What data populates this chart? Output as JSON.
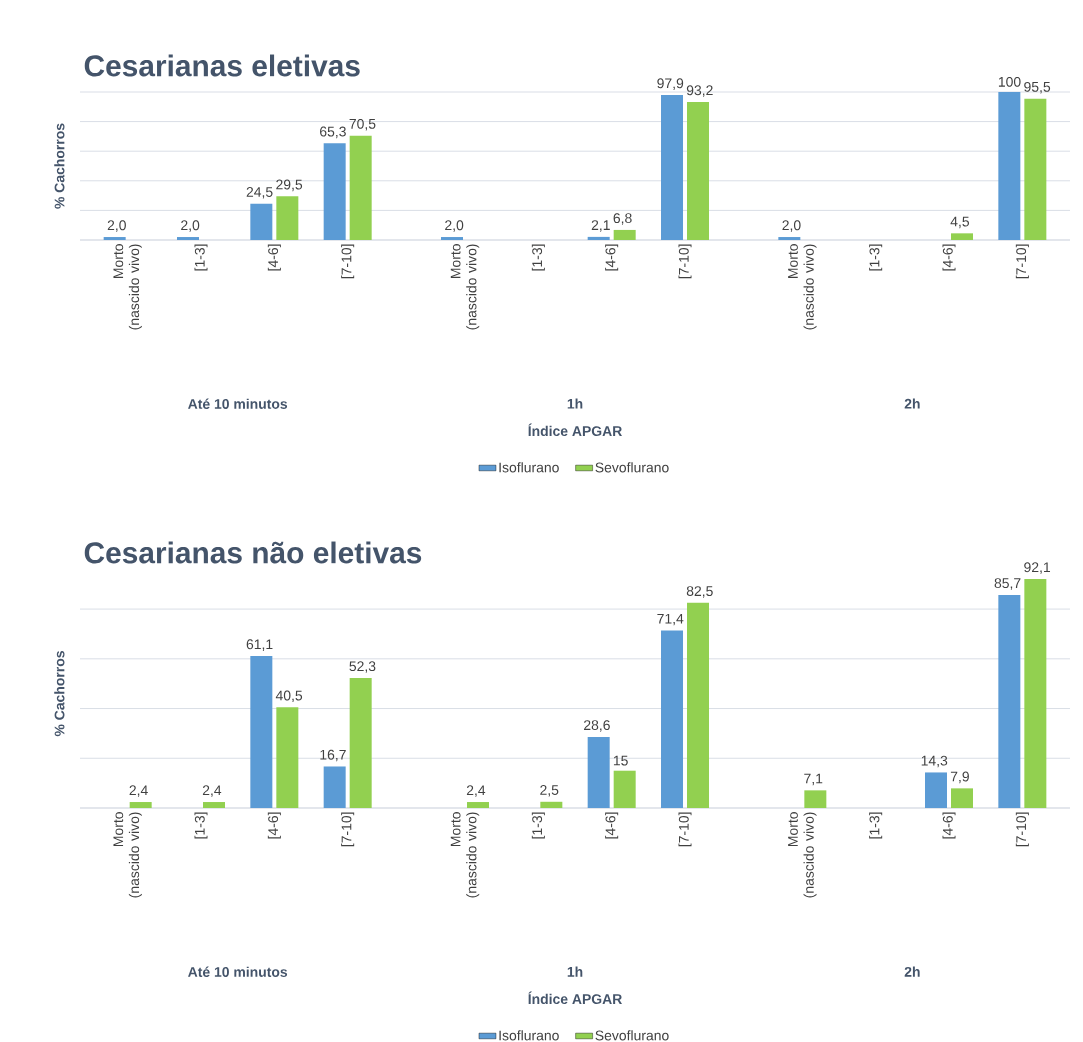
{
  "chart_data": [
    {
      "type": "bar",
      "title": "Cesarianas eletivas",
      "xlabel": "Índice APGAR",
      "ylabel": "% Cachorros",
      "categories": [
        "Morto (nascido vivo)",
        "[1-3]",
        "[4-6]",
        "[7-10]",
        "Morto (nascido vivo)",
        "[1-3]",
        "[4-6]",
        "[7-10]",
        "Morto (nascido vivo)",
        "[1-3]",
        "[4-6]",
        "[7-10]"
      ],
      "annotations": [
        "Até 10 minutos",
        "1h",
        "2h"
      ],
      "series": [
        {
          "name": "Isoflurano",
          "color": "#5b9bd5",
          "values": [
            2.0,
            2.0,
            24.5,
            65.3,
            2.0,
            null,
            2.1,
            97.9,
            2.0,
            null,
            null,
            100
          ],
          "value_labels": [
            "2,0",
            "2,0",
            "24,5",
            "65,3",
            "2,0",
            null,
            "2,1",
            "97,9",
            "2,0",
            null,
            null,
            "100"
          ]
        },
        {
          "name": "Sevoflurano",
          "color": "#92d050",
          "values": [
            null,
            null,
            29.5,
            70.5,
            null,
            null,
            6.8,
            93.2,
            null,
            null,
            4.5,
            95.5
          ],
          "value_labels": [
            null,
            null,
            "29,5",
            "70,5",
            null,
            null,
            "6,8",
            "93,2",
            null,
            null,
            "4,5",
            "95,5"
          ]
        }
      ],
      "tick_labels": "x",
      "grid": "y",
      "legend": "bottom"
    },
    {
      "type": "bar",
      "title": "Cesarianas não eletivas",
      "xlabel": "Índice APGAR",
      "ylabel": "% Cachorros",
      "categories": [
        "Morto (nascido vivo)",
        "[1-3]",
        "[4-6]",
        "[7-10]",
        "Morto (nascido vivo)",
        "[1-3]",
        "[4-6]",
        "[7-10]",
        "Morto (nascido vivo)",
        "[1-3]",
        "[4-6]",
        "[7-10]"
      ],
      "annotations": [
        "Até 10 minutos",
        "1h",
        "2h"
      ],
      "series": [
        {
          "name": "Isoflurano",
          "color": "#5b9bd5",
          "values": [
            null,
            null,
            61.1,
            16.7,
            null,
            null,
            28.6,
            71.4,
            null,
            null,
            14.3,
            85.7
          ],
          "value_labels": [
            null,
            null,
            "61,1",
            "16,7",
            null,
            null,
            "28,6",
            "71,4",
            null,
            null,
            "14,3",
            "85,7"
          ]
        },
        {
          "name": "Sevoflurano",
          "color": "#92d050",
          "values": [
            2.4,
            2.4,
            40.5,
            52.3,
            2.4,
            2.5,
            15,
            82.5,
            7.1,
            null,
            7.9,
            92.1
          ],
          "value_labels": [
            "2,4",
            "2,4",
            "40,5",
            "52,3",
            "2,4",
            "2,5",
            "15",
            "82,5",
            "7,1",
            null,
            "7,9",
            "92,1"
          ]
        }
      ],
      "tick_labels": "x",
      "grid": "y",
      "legend": "bottom"
    }
  ]
}
